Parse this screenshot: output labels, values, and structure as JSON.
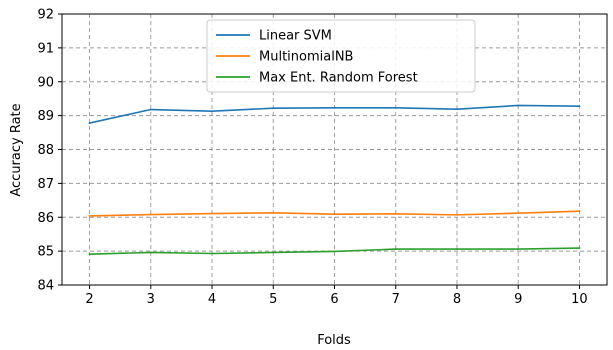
{
  "chart_data": {
    "type": "line",
    "xlabel": "Folds",
    "ylabel": "Accuracy Rate",
    "x": [
      2,
      3,
      4,
      5,
      6,
      7,
      8,
      9,
      10
    ],
    "xlim": [
      2,
      10
    ],
    "ylim": [
      84,
      92
    ],
    "xticks": [
      2,
      3,
      4,
      5,
      6,
      7,
      8,
      9,
      10
    ],
    "yticks": [
      84,
      85,
      86,
      87,
      88,
      89,
      90,
      91,
      92
    ],
    "grid": true,
    "grid_style": "dashed",
    "legend_position": "top-center",
    "series": [
      {
        "name": "Linear SVM",
        "color": "#1f77b4",
        "values": [
          88.78,
          89.18,
          89.13,
          89.22,
          89.23,
          89.23,
          89.19,
          89.3,
          89.28
        ]
      },
      {
        "name": "MultinomialNB",
        "color": "#ff7f0e",
        "values": [
          86.04,
          86.08,
          86.11,
          86.13,
          86.09,
          86.1,
          86.07,
          86.12,
          86.18
        ]
      },
      {
        "name": "Max Ent. Random Forest",
        "color": "#2ca02c",
        "values": [
          84.91,
          84.96,
          84.93,
          84.96,
          84.99,
          85.06,
          85.06,
          85.06,
          85.09
        ]
      }
    ]
  }
}
